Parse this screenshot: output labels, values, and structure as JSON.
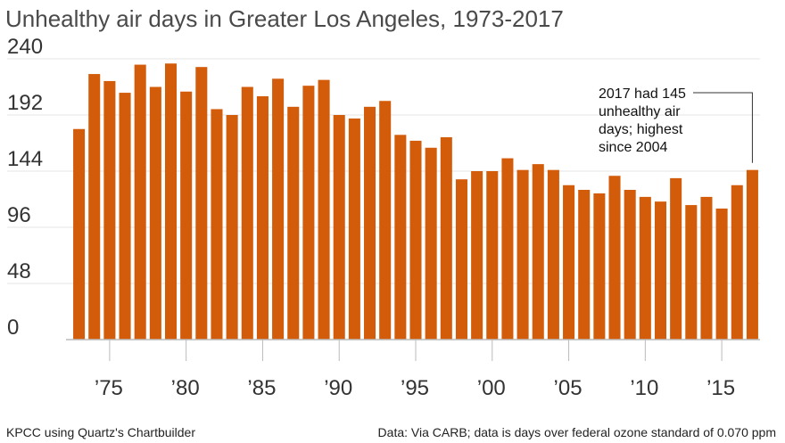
{
  "chart_data": {
    "type": "bar",
    "title": "Unhealthy air days in Greater Los Angeles, 1973-2017",
    "xlabel": "",
    "ylabel": "",
    "categories": [
      "1973",
      "1974",
      "1975",
      "1976",
      "1977",
      "1978",
      "1979",
      "1980",
      "1981",
      "1982",
      "1983",
      "1984",
      "1985",
      "1986",
      "1987",
      "1988",
      "1989",
      "1990",
      "1991",
      "1992",
      "1993",
      "1994",
      "1995",
      "1996",
      "1997",
      "1998",
      "1999",
      "2000",
      "2001",
      "2002",
      "2003",
      "2004",
      "2005",
      "2006",
      "2007",
      "2008",
      "2009",
      "2010",
      "2011",
      "2012",
      "2013",
      "2014",
      "2015",
      "2016",
      "2017"
    ],
    "values": [
      180,
      227,
      221,
      211,
      235,
      216,
      236,
      212,
      233,
      197,
      192,
      216,
      208,
      223,
      199,
      217,
      222,
      192,
      189,
      199,
      204,
      175,
      170,
      164,
      173,
      137,
      144,
      144,
      155,
      145,
      150,
      145,
      132,
      128,
      125,
      140,
      128,
      122,
      118,
      138,
      115,
      122,
      112,
      132,
      145
    ],
    "ylim": [
      0,
      240
    ],
    "yticks": [
      0,
      48,
      96,
      144,
      192,
      240
    ],
    "xtick_labels": [
      {
        "year": "1975",
        "label": "’75"
      },
      {
        "year": "1980",
        "label": "’80"
      },
      {
        "year": "1985",
        "label": "’85"
      },
      {
        "year": "1990",
        "label": "’90"
      },
      {
        "year": "1995",
        "label": "’95"
      },
      {
        "year": "2000",
        "label": "’00"
      },
      {
        "year": "2005",
        "label": "’05"
      },
      {
        "year": "2010",
        "label": "’10"
      },
      {
        "year": "2015",
        "label": "’15"
      }
    ],
    "bar_color": "#d35c0a",
    "grid": true,
    "annotation": {
      "target_year": "2017",
      "lines": [
        "2017 had 145",
        "unhealthy air",
        "days; highest",
        "since 2004"
      ]
    }
  },
  "footer": {
    "credit": "KPCC using Quartz's Chartbuilder",
    "source": "Data: Via CARB; data is days over federal ozone standard of 0.070 ppm"
  }
}
